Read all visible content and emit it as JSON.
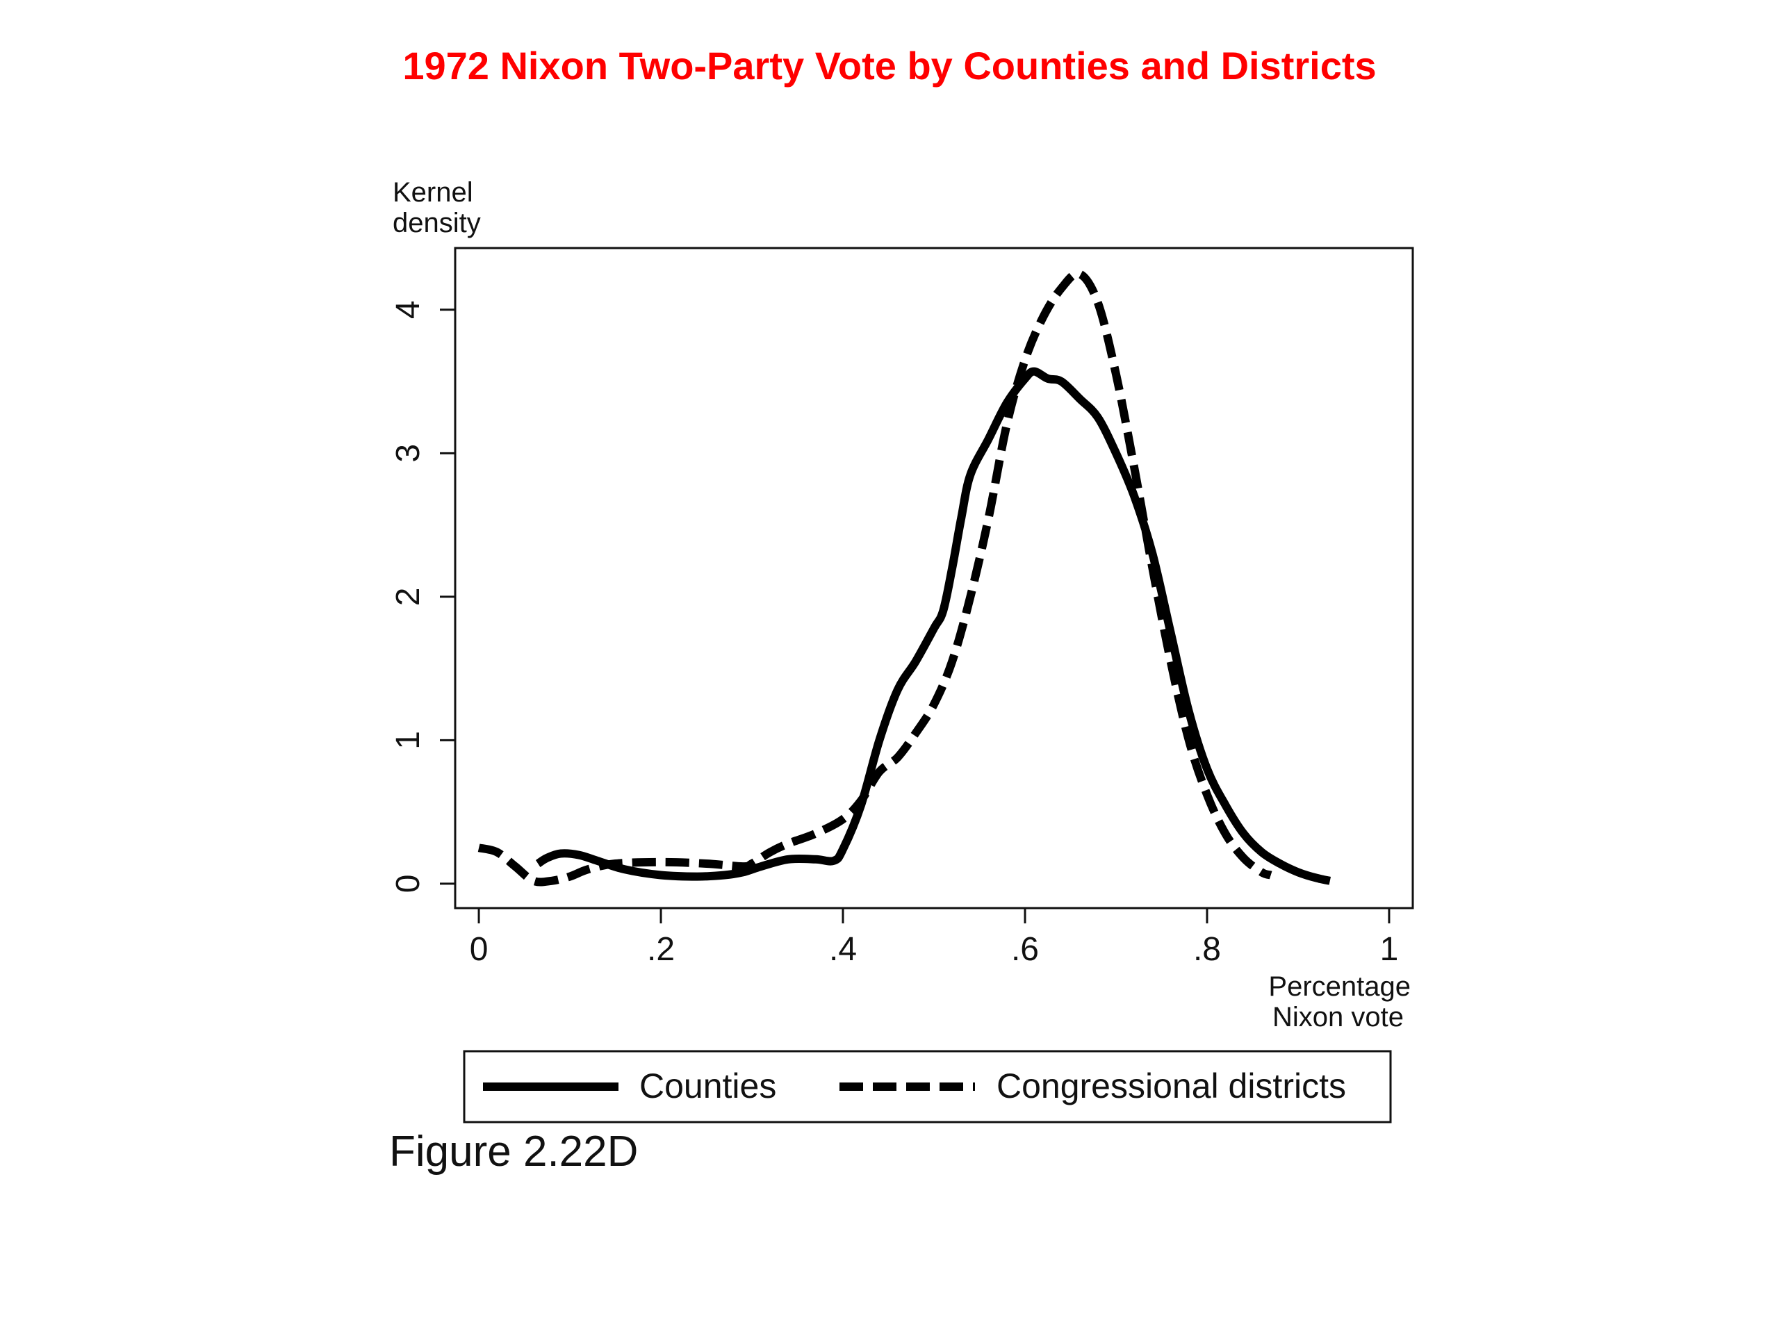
{
  "slide": {
    "title": "1972 Nixon Two-Party Vote by Counties and Districts",
    "caption": "Figure 2.22D",
    "title_color": "#ff0000"
  },
  "chart_data": {
    "type": "line",
    "title": "1972 Nixon Two-Party Vote by Counties and Districts",
    "ylabel_lines": [
      "Kernel",
      "density"
    ],
    "xlabel_lines": [
      "Percentage",
      "Nixon vote"
    ],
    "xlim": [
      -0.026,
      1.026
    ],
    "ylim": [
      -0.17,
      4.43
    ],
    "x_ticks": [
      {
        "value": 0,
        "label": "0"
      },
      {
        "value": 0.2,
        "label": ".2"
      },
      {
        "value": 0.4,
        "label": ".4"
      },
      {
        "value": 0.6,
        "label": ".6"
      },
      {
        "value": 0.8,
        "label": ".8"
      },
      {
        "value": 1,
        "label": "1"
      }
    ],
    "y_ticks": [
      {
        "value": 0,
        "label": "0"
      },
      {
        "value": 1,
        "label": "1"
      },
      {
        "value": 2,
        "label": "2"
      },
      {
        "value": 3,
        "label": "3"
      },
      {
        "value": 4,
        "label": "4"
      }
    ],
    "grid": false,
    "legend_position": "bottom",
    "series": [
      {
        "name": "Counties",
        "style": "solid",
        "color": "#000000",
        "points": [
          [
            0.065,
            0.14
          ],
          [
            0.075,
            0.18
          ],
          [
            0.09,
            0.21
          ],
          [
            0.11,
            0.2
          ],
          [
            0.13,
            0.16
          ],
          [
            0.16,
            0.1
          ],
          [
            0.2,
            0.06
          ],
          [
            0.24,
            0.05
          ],
          [
            0.27,
            0.06
          ],
          [
            0.29,
            0.08
          ],
          [
            0.31,
            0.12
          ],
          [
            0.34,
            0.17
          ],
          [
            0.37,
            0.17
          ],
          [
            0.39,
            0.16
          ],
          [
            0.4,
            0.24
          ],
          [
            0.42,
            0.55
          ],
          [
            0.44,
            1.0
          ],
          [
            0.46,
            1.35
          ],
          [
            0.48,
            1.55
          ],
          [
            0.5,
            1.78
          ],
          [
            0.51,
            1.9
          ],
          [
            0.52,
            2.2
          ],
          [
            0.53,
            2.55
          ],
          [
            0.54,
            2.85
          ],
          [
            0.56,
            3.1
          ],
          [
            0.58,
            3.35
          ],
          [
            0.6,
            3.52
          ],
          [
            0.61,
            3.57
          ],
          [
            0.625,
            3.52
          ],
          [
            0.64,
            3.5
          ],
          [
            0.66,
            3.38
          ],
          [
            0.68,
            3.25
          ],
          [
            0.7,
            3.0
          ],
          [
            0.72,
            2.7
          ],
          [
            0.74,
            2.3
          ],
          [
            0.76,
            1.75
          ],
          [
            0.78,
            1.2
          ],
          [
            0.8,
            0.8
          ],
          [
            0.82,
            0.55
          ],
          [
            0.84,
            0.35
          ],
          [
            0.86,
            0.22
          ],
          [
            0.88,
            0.14
          ],
          [
            0.9,
            0.08
          ],
          [
            0.92,
            0.04
          ],
          [
            0.935,
            0.02
          ]
        ]
      },
      {
        "name": "Congressional districts",
        "style": "dashed",
        "color": "#000000",
        "points": [
          [
            0.0,
            0.25
          ],
          [
            0.02,
            0.22
          ],
          [
            0.04,
            0.12
          ],
          [
            0.06,
            0.02
          ],
          [
            0.08,
            0.02
          ],
          [
            0.1,
            0.05
          ],
          [
            0.12,
            0.1
          ],
          [
            0.15,
            0.14
          ],
          [
            0.2,
            0.15
          ],
          [
            0.25,
            0.14
          ],
          [
            0.29,
            0.12
          ],
          [
            0.3,
            0.14
          ],
          [
            0.32,
            0.22
          ],
          [
            0.34,
            0.28
          ],
          [
            0.37,
            0.35
          ],
          [
            0.4,
            0.45
          ],
          [
            0.42,
            0.58
          ],
          [
            0.44,
            0.78
          ],
          [
            0.46,
            0.88
          ],
          [
            0.48,
            1.05
          ],
          [
            0.5,
            1.25
          ],
          [
            0.52,
            1.55
          ],
          [
            0.54,
            2.0
          ],
          [
            0.56,
            2.55
          ],
          [
            0.58,
            3.2
          ],
          [
            0.6,
            3.65
          ],
          [
            0.62,
            3.95
          ],
          [
            0.64,
            4.15
          ],
          [
            0.66,
            4.25
          ],
          [
            0.68,
            4.05
          ],
          [
            0.7,
            3.55
          ],
          [
            0.72,
            2.9
          ],
          [
            0.74,
            2.2
          ],
          [
            0.76,
            1.55
          ],
          [
            0.78,
            1.0
          ],
          [
            0.8,
            0.62
          ],
          [
            0.82,
            0.35
          ],
          [
            0.84,
            0.18
          ],
          [
            0.86,
            0.08
          ],
          [
            0.87,
            0.06
          ]
        ]
      }
    ]
  }
}
